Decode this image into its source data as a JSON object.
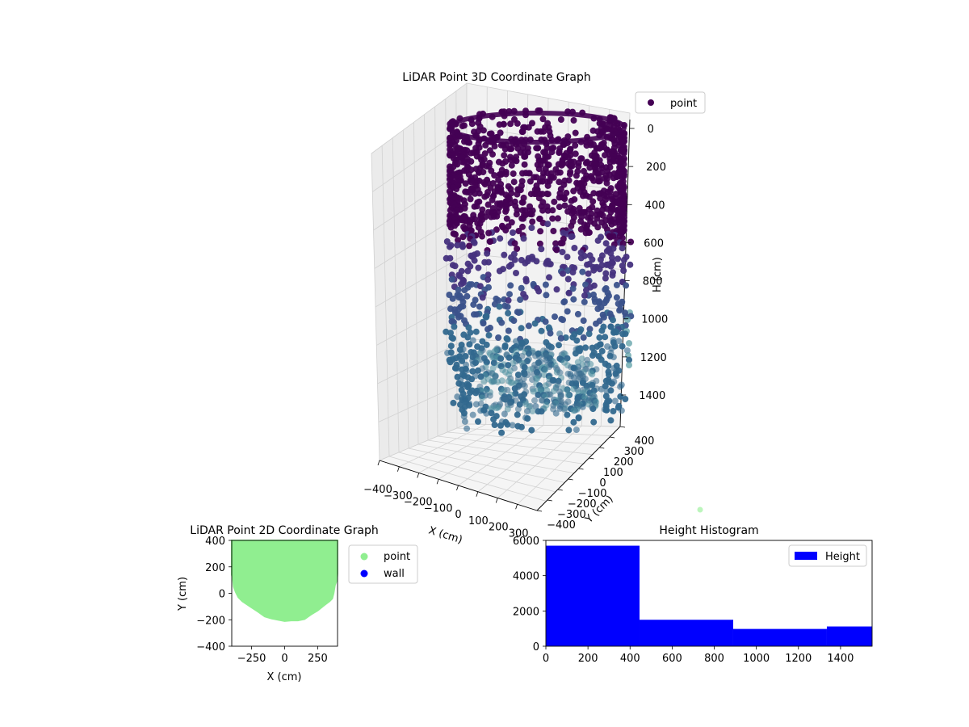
{
  "chart_data": [
    {
      "type": "scatter",
      "title": "LiDAR Point 3D Coordinate Graph",
      "xlabel": "X (cm)",
      "ylabel": "Y (cm)",
      "zlabel": "H (cm)",
      "xlim": [
        -400,
        400
      ],
      "ylim": [
        -400,
        400
      ],
      "zlim": [
        1550,
        0
      ],
      "x_ticks": [
        "−400",
        "−300",
        "−200",
        "−100",
        "0",
        "100",
        "200",
        "300"
      ],
      "y_ticks": [
        "−400",
        "−300",
        "−200",
        "−100",
        "0",
        "100",
        "200",
        "300",
        "400"
      ],
      "z_ticks": [
        "0",
        "200",
        "400",
        "600",
        "800",
        "1000",
        "1200",
        "1400"
      ],
      "legend": [
        "point"
      ],
      "legend_position": "top-right",
      "grid": true,
      "colormap": "viridis",
      "colors": {
        "high": "#440154",
        "mid": "#3b528b",
        "low": "#31688e",
        "outlier": "#5c9fa6"
      }
    },
    {
      "type": "scatter",
      "title": "LiDAR Point 2D Coordinate Graph",
      "xlabel": "X (cm)",
      "ylabel": "Y (cm)",
      "xlim": [
        -400,
        400
      ],
      "ylim": [
        -400,
        400
      ],
      "x_ticks": [
        "−250",
        "0",
        "250"
      ],
      "y_ticks": [
        "−400",
        "−200",
        "0",
        "200",
        "400"
      ],
      "legend_position": "outside-right",
      "series": [
        {
          "name": "point",
          "color": "#90ee90"
        },
        {
          "name": "wall",
          "color": "#0000ff"
        }
      ],
      "boundary": [
        [
          -400,
          140
        ],
        [
          -390,
          100
        ],
        [
          -385,
          50
        ],
        [
          -370,
          10
        ],
        [
          -350,
          -30
        ],
        [
          -320,
          -60
        ],
        [
          -260,
          -100
        ],
        [
          -200,
          -140
        ],
        [
          -150,
          -175
        ],
        [
          -100,
          -190
        ],
        [
          -50,
          -200
        ],
        [
          0,
          -210
        ],
        [
          50,
          -205
        ],
        [
          100,
          -205
        ],
        [
          150,
          -195
        ],
        [
          200,
          -160
        ],
        [
          250,
          -130
        ],
        [
          300,
          -90
        ],
        [
          340,
          -60
        ],
        [
          360,
          -40
        ],
        [
          370,
          0
        ],
        [
          380,
          60
        ],
        [
          395,
          100
        ],
        [
          400,
          150
        ]
      ]
    },
    {
      "type": "bar",
      "title": "Height Histogram",
      "bins": [
        [
          0,
          445
        ],
        [
          445,
          890
        ],
        [
          890,
          1335
        ],
        [
          1335,
          1550
        ]
      ],
      "values": [
        5700,
        1500,
        980,
        1120
      ],
      "xlim": [
        0,
        1550
      ],
      "ylim": [
        0,
        6000
      ],
      "x_ticks": [
        "0",
        "200",
        "400",
        "600",
        "800",
        "1000",
        "1200",
        "1400"
      ],
      "y_ticks": [
        "0",
        "2000",
        "4000",
        "6000"
      ],
      "legend": [
        "Height"
      ],
      "legend_position": "top-right",
      "color": "#0000ff"
    }
  ]
}
